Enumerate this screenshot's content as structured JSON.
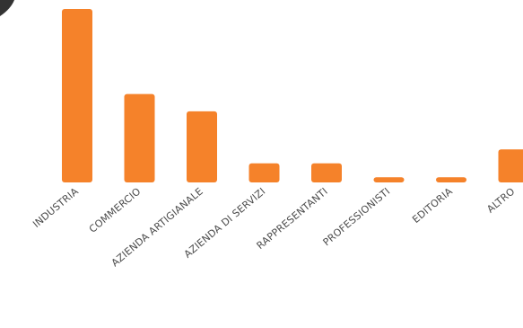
{
  "chart_data": {
    "type": "bar",
    "title": "",
    "xlabel": "",
    "ylabel": "",
    "categories": [
      "INDUSTRIA",
      "COMMERCIO",
      "AZIENDA ARTIGIANALE",
      "AZIENDA DI SERVIZI",
      "RAPPRESENTANTI",
      "PROFESSIONISTI",
      "EDITORIA",
      "ALTRO"
    ],
    "values": [
      100,
      51,
      41,
      11,
      11,
      3,
      3,
      19
    ],
    "ylim": [
      0,
      100
    ],
    "grid": false,
    "legend": "none",
    "bar_color": "#f5822a",
    "label_color": "#4a4a4a",
    "corner_mark_color": "#333333"
  }
}
